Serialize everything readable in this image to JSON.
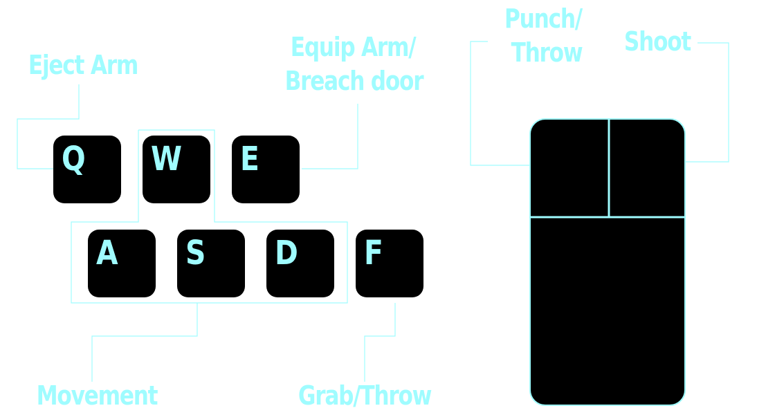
{
  "colors": {
    "accent": "#9ffcff",
    "key_fill": "#000000",
    "background": "#ffffff"
  },
  "keys": [
    {
      "id": "q",
      "letter": "Q"
    },
    {
      "id": "w",
      "letter": "W"
    },
    {
      "id": "e",
      "letter": "E"
    },
    {
      "id": "a",
      "letter": "A"
    },
    {
      "id": "s",
      "letter": "S"
    },
    {
      "id": "d",
      "letter": "D"
    },
    {
      "id": "f",
      "letter": "F"
    }
  ],
  "labels": {
    "eject_arm": "Eject Arm",
    "equip_arm_line1": "Equip Arm/",
    "equip_arm_line2": "Breach door",
    "movement": "Movement",
    "grab_throw": "Grab/Throw",
    "punch_line1": "Punch/",
    "punch_line2": "Throw",
    "shoot": "Shoot"
  }
}
